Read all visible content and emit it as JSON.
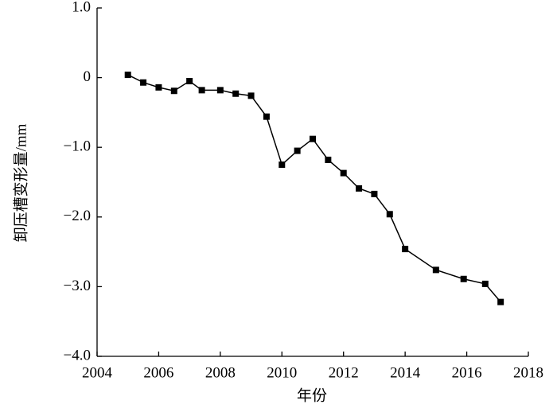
{
  "chart_data": {
    "type": "line",
    "x_label": "年份",
    "y_label": "卸压槽变形量/mm",
    "x": [
      2005.0,
      2005.5,
      2006.0,
      2006.5,
      2007.0,
      2007.4,
      2008.0,
      2008.5,
      2009.0,
      2009.5,
      2010.0,
      2010.5,
      2011.0,
      2011.5,
      2012.0,
      2012.5,
      2013.0,
      2013.5,
      2014.0,
      2015.0,
      2015.9,
      2016.6,
      2017.1
    ],
    "series": [
      {
        "color": "#000000",
        "marker": "square",
        "values": [
          0.04,
          -0.07,
          -0.14,
          -0.19,
          -0.05,
          -0.18,
          -0.18,
          -0.23,
          -0.26,
          -0.56,
          -1.25,
          -1.05,
          -0.88,
          -1.18,
          -1.37,
          -1.59,
          -1.67,
          -1.96,
          -2.46,
          -2.76,
          -2.89,
          -2.96,
          -3.22
        ]
      }
    ],
    "xlim": [
      2004,
      2018
    ],
    "xticks": [
      2004,
      2006,
      2008,
      2010,
      2012,
      2014,
      2016,
      2018
    ],
    "ylim": [
      -4.0,
      1.0
    ],
    "yticks": [
      {
        "value": -4.0,
        "label": "−4.0"
      },
      {
        "value": -3.0,
        "label": "−3.0"
      },
      {
        "value": -2.0,
        "label": "−2.0"
      },
      {
        "value": -1.0,
        "label": "−1.0"
      },
      0,
      {
        "value": 1.0,
        "label": "1.0"
      }
    ],
    "grid": false
  }
}
